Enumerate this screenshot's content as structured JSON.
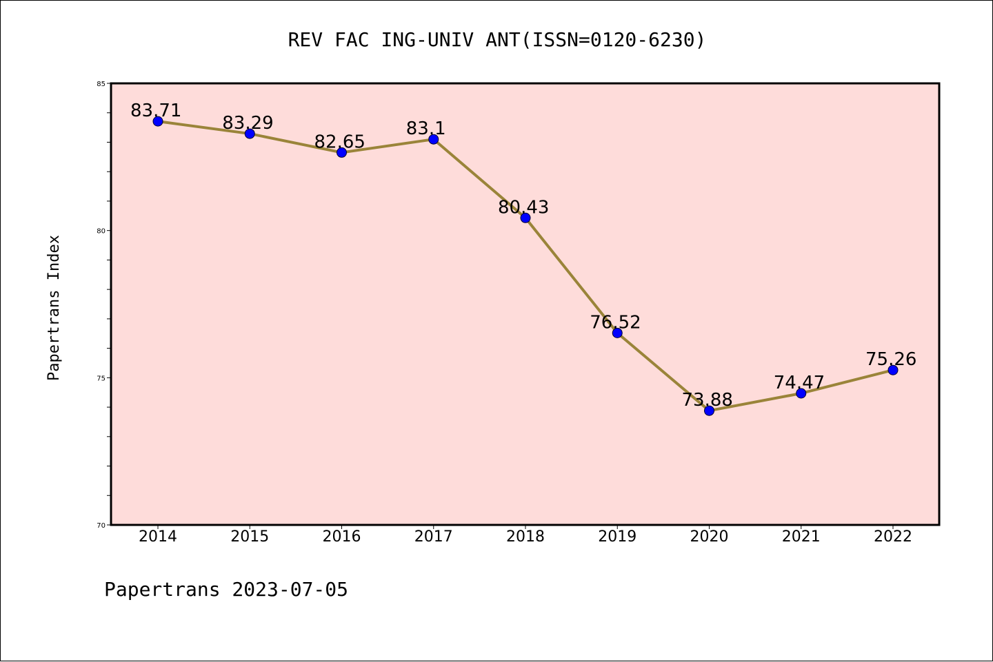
{
  "chart_data": {
    "type": "line",
    "title": "REV FAC ING-UNIV ANT(ISSN=0120-6230)",
    "ylabel": "Papertrans Index",
    "xlabel": "",
    "categories": [
      "2014",
      "2015",
      "2016",
      "2017",
      "2018",
      "2019",
      "2020",
      "2021",
      "2022"
    ],
    "series": [
      {
        "values": [
          83.71,
          83.29,
          82.65,
          83.1,
          80.43,
          76.52,
          73.88,
          74.47,
          75.26
        ],
        "labels": [
          "83.71",
          "83.29",
          "82.65",
          "83.1",
          "80.43",
          "76.52",
          "73.88",
          "74.47",
          "75.26"
        ]
      }
    ],
    "ylim": [
      70,
      85
    ],
    "yticks": [
      70,
      75,
      80,
      85
    ],
    "ytick_labels": [
      "70",
      "75",
      "80",
      "85"
    ],
    "grid": false,
    "colors": {
      "plot_background": "#fedcda",
      "line": "#9a8439",
      "marker": "#0000ff"
    }
  },
  "footer": {
    "text": "Papertrans 2023-07-05"
  }
}
